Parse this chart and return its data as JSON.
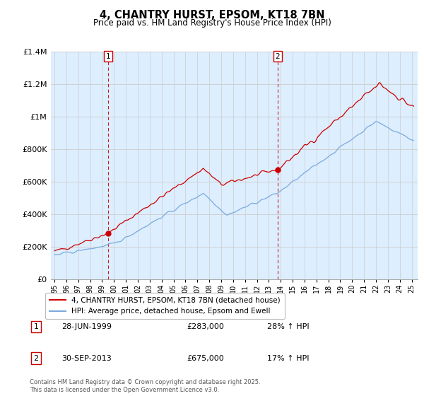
{
  "title": "4, CHANTRY HURST, EPSOM, KT18 7BN",
  "subtitle": "Price paid vs. HM Land Registry's House Price Index (HPI)",
  "legend_label_red": "4, CHANTRY HURST, EPSOM, KT18 7BN (detached house)",
  "legend_label_blue": "HPI: Average price, detached house, Epsom and Ewell",
  "annotation1_label": "1",
  "annotation1_date": "28-JUN-1999",
  "annotation1_price": "£283,000",
  "annotation1_hpi": "28% ↑ HPI",
  "annotation2_label": "2",
  "annotation2_date": "30-SEP-2013",
  "annotation2_price": "£675,000",
  "annotation2_hpi": "17% ↑ HPI",
  "footer": "Contains HM Land Registry data © Crown copyright and database right 2025.\nThis data is licensed under the Open Government Licence v3.0.",
  "ylim": [
    0,
    1400000
  ],
  "red_color": "#cc0000",
  "blue_color": "#7aaadd",
  "bg_fill_color": "#ddeeff",
  "dashed_red_color": "#cc0000",
  "background_color": "#ffffff",
  "grid_color": "#cccccc",
  "sale1_year": 1999.5,
  "sale1_price": 283000,
  "sale2_year": 2013.75,
  "sale2_price": 675000,
  "xstart": 1995.0,
  "xend": 2025.25
}
